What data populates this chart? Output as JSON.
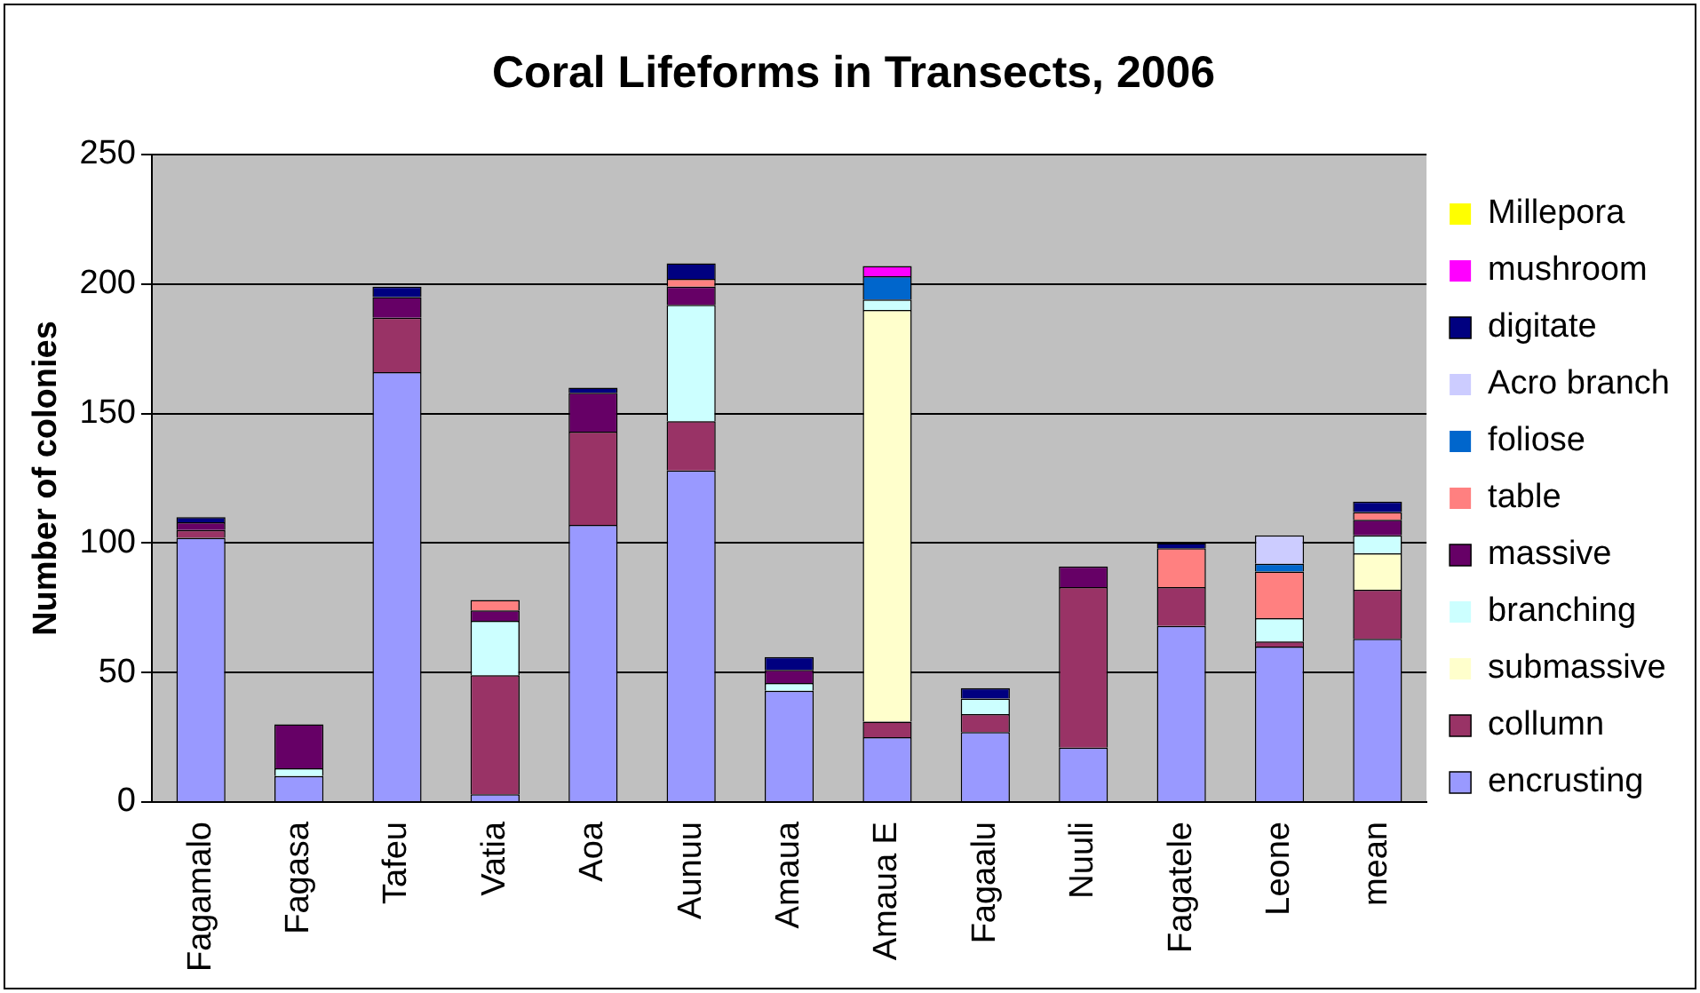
{
  "chart_data": {
    "type": "bar",
    "title": "Coral Lifeforms in Transects, 2006",
    "ylabel": "Number of colonies",
    "stacked": true,
    "grid": "y",
    "legend": "right",
    "categories": [
      "Fagamalo",
      "Fagasa",
      "Tafeu",
      "Vatia",
      "Aoa",
      "Aunuu",
      "Amaua",
      "Amaua E",
      "Fagaalu",
      "Nuuli",
      "Fagatele",
      "Leone",
      "mean"
    ],
    "ylim": [
      0,
      250
    ],
    "yticks": [
      0,
      50,
      100,
      150,
      200,
      250
    ],
    "series": [
      {
        "name": "encrusting",
        "color": "#9999ff",
        "values": [
          102,
          10,
          166,
          3,
          107,
          128,
          43,
          25,
          27,
          21,
          68,
          60,
          63
        ]
      },
      {
        "name": "collumn",
        "color": "#993366",
        "values": [
          3,
          0,
          21,
          46,
          36,
          19,
          0,
          6,
          7,
          62,
          15,
          2,
          19
        ]
      },
      {
        "name": "submassive",
        "color": "#ffffcc",
        "values": [
          0,
          0,
          0,
          0,
          0,
          0,
          0,
          159,
          0,
          0,
          0,
          0,
          14
        ]
      },
      {
        "name": "branching",
        "color": "#ccffff",
        "values": [
          0,
          3,
          0,
          21,
          0,
          45,
          3,
          4,
          6,
          0,
          0,
          9,
          7
        ]
      },
      {
        "name": "massive",
        "color": "#660066",
        "values": [
          3,
          17,
          8,
          4,
          15,
          7,
          5,
          0,
          0,
          8,
          0,
          0,
          6
        ]
      },
      {
        "name": "table",
        "color": "#ff8080",
        "values": [
          0,
          0,
          0,
          4,
          0,
          3,
          0,
          0,
          0,
          0,
          15,
          18,
          3
        ]
      },
      {
        "name": "foliose",
        "color": "#0066cc",
        "values": [
          0,
          0,
          0,
          0,
          0,
          0,
          0,
          9,
          0,
          0,
          0,
          3,
          0
        ]
      },
      {
        "name": "Acro branch",
        "color": "#ccccff",
        "values": [
          0,
          0,
          0,
          0,
          0,
          0,
          0,
          0,
          0,
          0,
          0,
          11,
          0
        ]
      },
      {
        "name": "digitate",
        "color": "#000080",
        "values": [
          2,
          0,
          4,
          0,
          2,
          6,
          5,
          0,
          4,
          0,
          2,
          0,
          4
        ]
      },
      {
        "name": "mushroom",
        "color": "#ff00ff",
        "values": [
          0,
          0,
          0,
          0,
          0,
          0,
          0,
          4,
          0,
          0,
          0,
          0,
          0
        ]
      },
      {
        "name": "Millepora",
        "color": "#ffff00",
        "values": [
          0,
          0,
          0,
          0,
          0,
          0,
          0,
          0,
          0,
          0,
          0,
          0,
          0
        ]
      }
    ]
  }
}
